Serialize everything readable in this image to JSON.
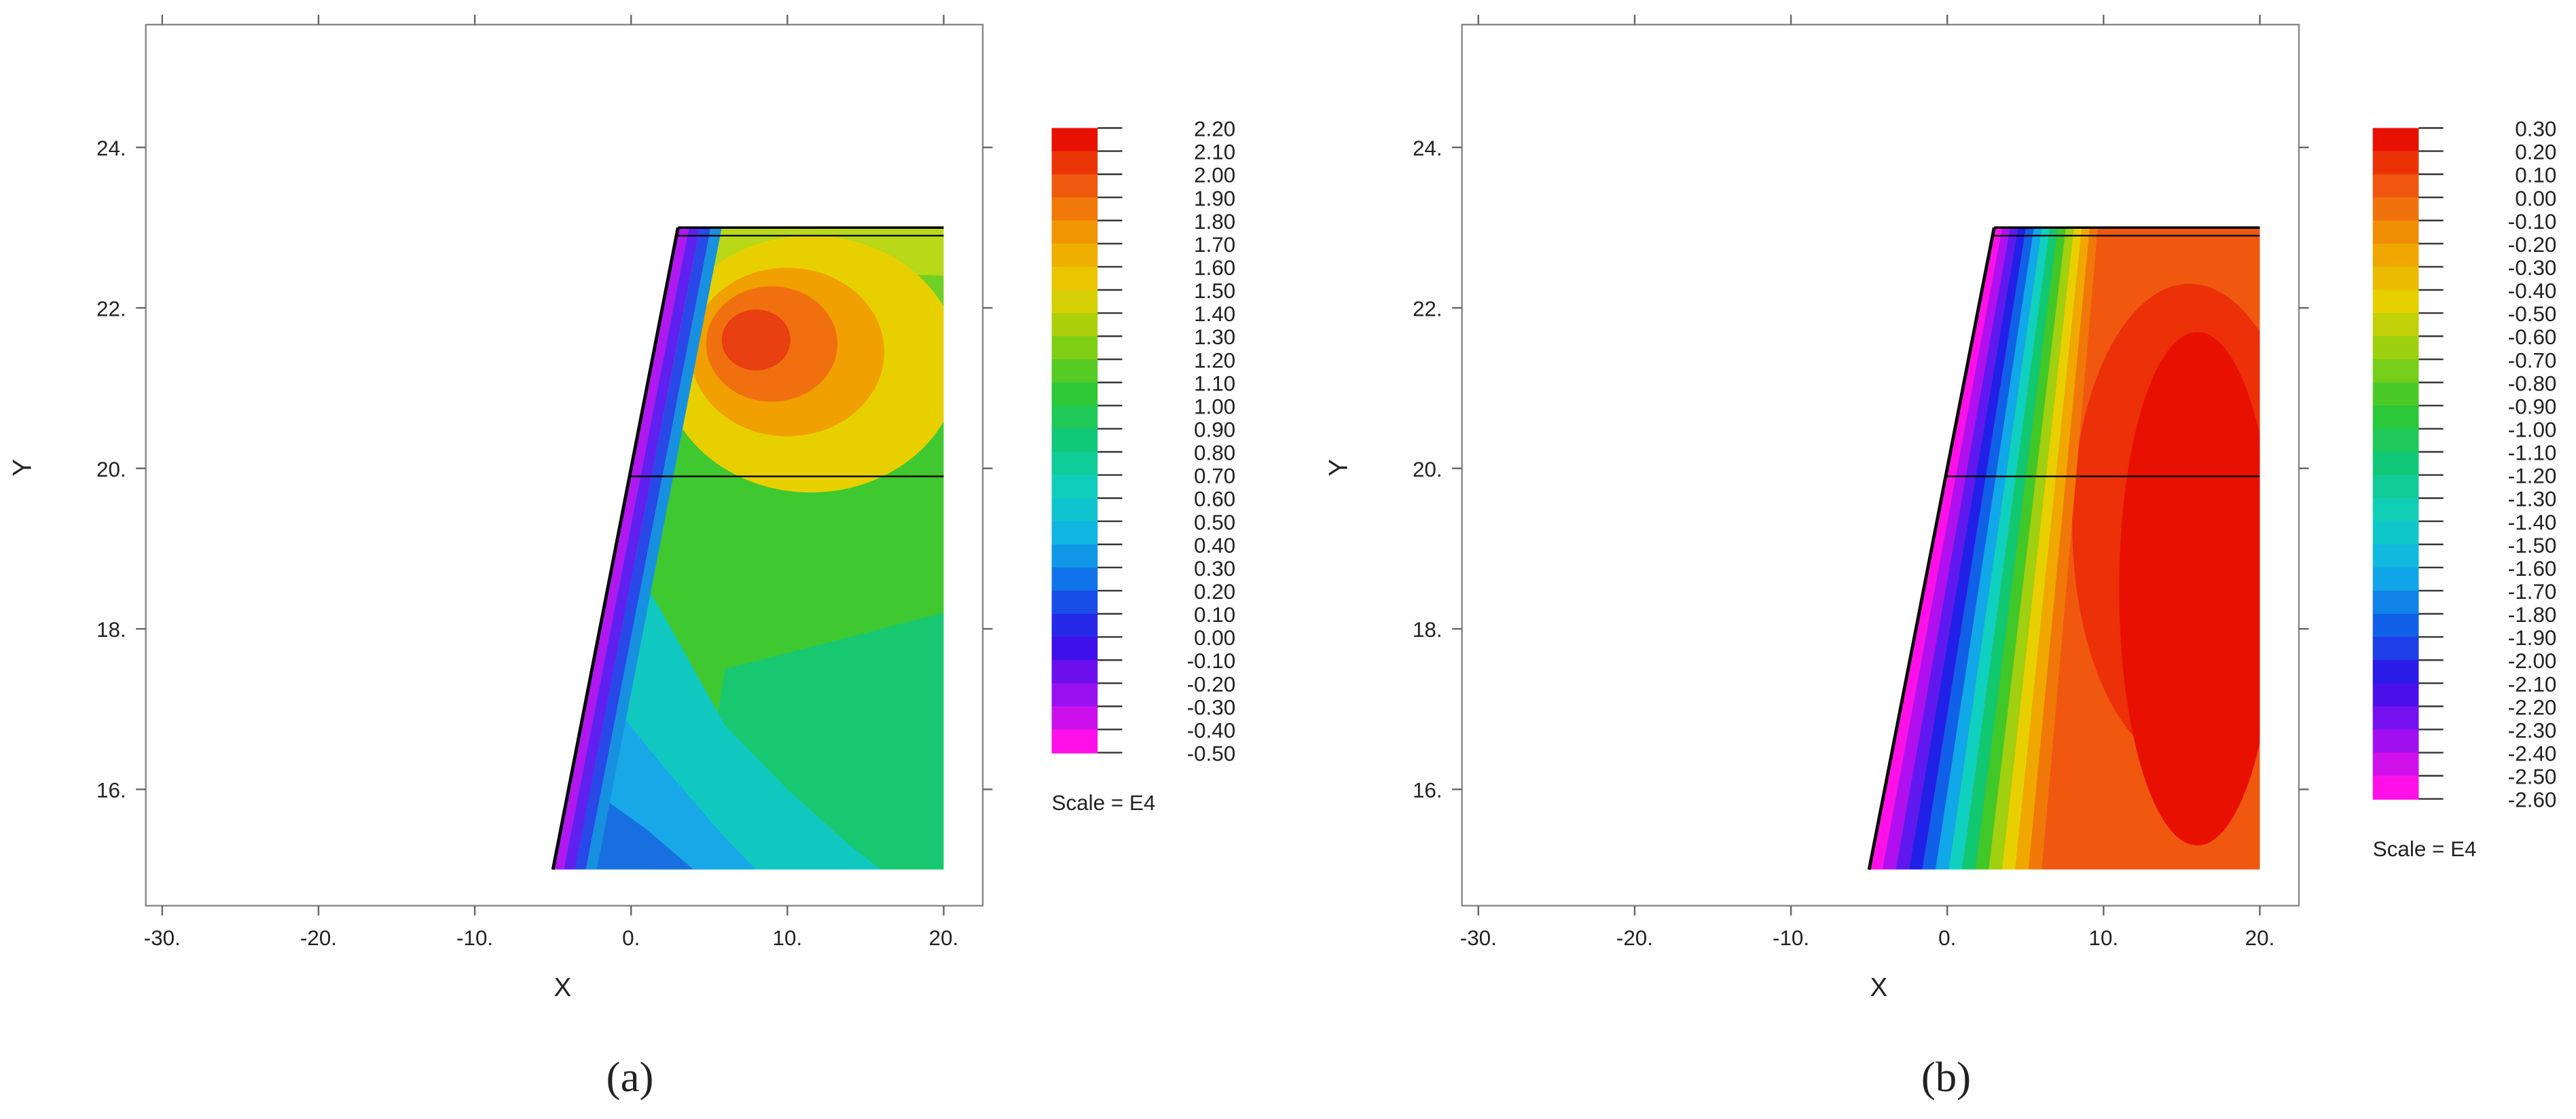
{
  "chart_data": [
    {
      "type": "contour",
      "xlabel": "X",
      "ylabel": "Y",
      "caption": "(a)",
      "xlim": [
        -31.05,
        22.5
      ],
      "ylim": [
        14.55,
        25.53
      ],
      "xticks": [
        {
          "value": -30,
          "label": "-30."
        },
        {
          "value": -20,
          "label": "-20."
        },
        {
          "value": -10,
          "label": "-10."
        },
        {
          "value": 0,
          "label": "0."
        },
        {
          "value": 10,
          "label": "10."
        },
        {
          "value": 20,
          "label": "20."
        }
      ],
      "yticks": [
        {
          "value": 16,
          "label": "16."
        },
        {
          "value": 18,
          "label": "18."
        },
        {
          "value": 20,
          "label": "20."
        },
        {
          "value": 22,
          "label": "22."
        },
        {
          "value": 24,
          "label": "24."
        }
      ],
      "colorbar": {
        "note": "Scale = E4",
        "colormap": [
          "#ff10e8",
          "#9010f0",
          "#3010e8",
          "#1060e8",
          "#10b0e8",
          "#10d0c0",
          "#10c878",
          "#30c830",
          "#90d010",
          "#e8d000",
          "#f0a000",
          "#f06010",
          "#e81000"
        ],
        "ticks": [
          {
            "value": 2.2,
            "label": "2.20"
          },
          {
            "value": 2.1,
            "label": "2.10"
          },
          {
            "value": 2.0,
            "label": "2.00"
          },
          {
            "value": 1.9,
            "label": "1.90"
          },
          {
            "value": 1.8,
            "label": "1.80"
          },
          {
            "value": 1.7,
            "label": "1.70"
          },
          {
            "value": 1.6,
            "label": "1.60"
          },
          {
            "value": 1.5,
            "label": "1.50"
          },
          {
            "value": 1.4,
            "label": "1.40"
          },
          {
            "value": 1.3,
            "label": "1.30"
          },
          {
            "value": 1.2,
            "label": "1.20"
          },
          {
            "value": 1.1,
            "label": "1.10"
          },
          {
            "value": 1.0,
            "label": "1.00"
          },
          {
            "value": 0.9,
            "label": "0.90"
          },
          {
            "value": 0.8,
            "label": "0.80"
          },
          {
            "value": 0.7,
            "label": "0.70"
          },
          {
            "value": 0.6,
            "label": "0.60"
          },
          {
            "value": 0.5,
            "label": "0.50"
          },
          {
            "value": 0.4,
            "label": "0.40"
          },
          {
            "value": 0.3,
            "label": "0.30"
          },
          {
            "value": 0.2,
            "label": "0.20"
          },
          {
            "value": 0.1,
            "label": "0.10"
          },
          {
            "value": 0.0,
            "label": "0.00"
          },
          {
            "value": -0.1,
            "label": "-0.10"
          },
          {
            "value": -0.2,
            "label": "-0.20"
          },
          {
            "value": -0.3,
            "label": "-0.30"
          },
          {
            "value": -0.4,
            "label": "-0.40"
          },
          {
            "value": -0.5,
            "label": "-0.50"
          }
        ]
      }
    },
    {
      "type": "contour",
      "xlabel": "X",
      "ylabel": "Y",
      "caption": "(b)",
      "xlim": [
        -31.05,
        22.5
      ],
      "ylim": [
        14.55,
        25.53
      ],
      "xticks": [
        {
          "value": -30,
          "label": "-30."
        },
        {
          "value": -20,
          "label": "-20."
        },
        {
          "value": -10,
          "label": "-10."
        },
        {
          "value": 0,
          "label": "0."
        },
        {
          "value": 10,
          "label": "10."
        },
        {
          "value": 20,
          "label": "20."
        }
      ],
      "yticks": [
        {
          "value": 16,
          "label": "16."
        },
        {
          "value": 18,
          "label": "18."
        },
        {
          "value": 20,
          "label": "20."
        },
        {
          "value": 22,
          "label": "22."
        },
        {
          "value": 24,
          "label": "24."
        }
      ],
      "colorbar": {
        "note": "Scale = E4",
        "colormap": [
          "#ff10e8",
          "#9010f0",
          "#3010e8",
          "#1060e8",
          "#10b0e8",
          "#10d0c0",
          "#10c878",
          "#30c830",
          "#90d010",
          "#e8d000",
          "#f0a000",
          "#f06010",
          "#e81000"
        ],
        "ticks": [
          {
            "value": 0.3,
            "label": "0.30"
          },
          {
            "value": 0.2,
            "label": "0.20"
          },
          {
            "value": 0.1,
            "label": "0.10"
          },
          {
            "value": 0.0,
            "label": "0.00"
          },
          {
            "value": -0.1,
            "label": "-0.10"
          },
          {
            "value": -0.2,
            "label": "-0.20"
          },
          {
            "value": -0.3,
            "label": "-0.30"
          },
          {
            "value": -0.4,
            "label": "-0.40"
          },
          {
            "value": -0.5,
            "label": "-0.50"
          },
          {
            "value": -0.6,
            "label": "-0.60"
          },
          {
            "value": -0.7,
            "label": "-0.70"
          },
          {
            "value": -0.8,
            "label": "-0.80"
          },
          {
            "value": -0.9,
            "label": "-0.90"
          },
          {
            "value": -1.0,
            "label": "-1.00"
          },
          {
            "value": -1.1,
            "label": "-1.10"
          },
          {
            "value": -1.2,
            "label": "-1.20"
          },
          {
            "value": -1.3,
            "label": "-1.30"
          },
          {
            "value": -1.4,
            "label": "-1.40"
          },
          {
            "value": -1.5,
            "label": "-1.50"
          },
          {
            "value": -1.6,
            "label": "-1.60"
          },
          {
            "value": -1.7,
            "label": "-1.70"
          },
          {
            "value": -1.8,
            "label": "-1.80"
          },
          {
            "value": -1.9,
            "label": "-1.90"
          },
          {
            "value": -2.0,
            "label": "-2.00"
          },
          {
            "value": -2.1,
            "label": "-2.10"
          },
          {
            "value": -2.2,
            "label": "-2.20"
          },
          {
            "value": -2.3,
            "label": "-2.30"
          },
          {
            "value": -2.4,
            "label": "-2.40"
          },
          {
            "value": -2.5,
            "label": "-2.50"
          },
          {
            "value": -2.6,
            "label": "-2.60"
          }
        ]
      }
    }
  ]
}
